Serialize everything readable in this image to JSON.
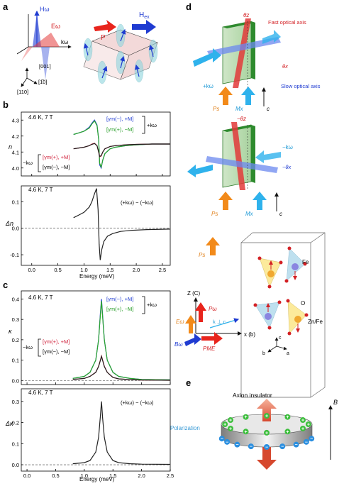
{
  "panels": {
    "a": {
      "label": "a",
      "field_h": "Hω",
      "field_e": "Eω",
      "k": "kω",
      "dir_001": "[001]",
      "dir_1m10": "[1̅0]",
      "dir_110": "[110]",
      "p": "P",
      "hex": "H",
      "hex_sub": "ex"
    },
    "b": {
      "label": "b",
      "top": {
        "condition": "4.6 K, 7 T",
        "ylabel": "n",
        "legend_up1": "[γm(−), +M]",
        "legend_up2": "[γm(+), −M]",
        "legend_up_k": "+kω",
        "legend_dn1": "[γm(+), +M]",
        "legend_dn2": "[γm(−), −M]",
        "legend_dn_k": "−kω"
      },
      "bottom": {
        "condition": "4.6 K, 7 T",
        "ylabel": "Δn",
        "diff": "(+kω) − (−kω)",
        "xlabel": "Energy (meV)"
      }
    },
    "c": {
      "label": "c",
      "top": {
        "condition": "4.6 K, 7 T",
        "ylabel": "κ",
        "legend_up1": "[γm(−), +M]",
        "legend_up2": "[γm(+), −M]",
        "legend_up_k": "+kω",
        "legend_dn1": "[γm(+), +M]",
        "legend_dn2": "[γm(−), −M]",
        "legend_dn_k": "−kω"
      },
      "bottom": {
        "condition": "4.6 K, 7 T",
        "ylabel": "Δκ",
        "diff": "(+kω) − (−kω)",
        "xlabel": "Energy (meV)"
      }
    },
    "d": {
      "label": "d",
      "theta_z": "θz",
      "fast_axis": "Fast optical axis",
      "slow_axis": "Slow optical axis",
      "theta_x": "θx",
      "k_plus": "+kω",
      "ps": "Ps",
      "mx": "Mx",
      "c_axis": "c",
      "theta_z_neg": "−θz",
      "k_minus": "−kω",
      "theta_x_neg": "−θx",
      "ps2": "Ps",
      "mx2": "Mx",
      "c_axis2": "c",
      "ps3": "Ps",
      "fe": "Fe",
      "o": "O",
      "znfe": "Zn/Fe",
      "zc": "Z (C)",
      "p_omega": "Pω",
      "e_omega": "Eω",
      "k_perp_c": "k ⊥ c",
      "b_omega": "Bω",
      "p_me": "PME",
      "x_b": "x (b)",
      "c_small": "c",
      "b_small": "b",
      "a_small": "a"
    },
    "e": {
      "label": "e",
      "axion": "Axion insulator",
      "polarization": "Polarization",
      "b_field": "B"
    }
  },
  "chart_data": [
    {
      "type": "line",
      "title": "",
      "xlabel": "",
      "ylabel": "n",
      "xlim": [
        -0.2,
        2.65
      ],
      "ylim": [
        3.95,
        4.35
      ],
      "xticks": [
        0.0,
        0.5,
        1.0,
        1.5,
        2.0,
        2.5
      ],
      "yticks": [
        4.0,
        4.1,
        4.2,
        4.3
      ],
      "series": [
        {
          "name": "[γm(−), +M]",
          "color": "#2a3fd6",
          "x": [
            0.8,
            0.9,
            1.0,
            1.1,
            1.15,
            1.2,
            1.25,
            1.28,
            1.3,
            1.33,
            1.36,
            1.4,
            1.5,
            1.6,
            1.8,
            2.0,
            2.3,
            2.65
          ],
          "y": [
            4.21,
            4.22,
            4.23,
            4.255,
            4.28,
            4.3,
            4.27,
            4.18,
            4.02,
            4.0,
            4.05,
            4.09,
            4.12,
            4.13,
            4.14,
            4.145,
            4.15,
            4.15
          ]
        },
        {
          "name": "[γm(+), −M]",
          "color": "#2aa82a",
          "x": [
            0.8,
            0.9,
            1.0,
            1.1,
            1.15,
            1.2,
            1.25,
            1.28,
            1.3,
            1.33,
            1.36,
            1.4,
            1.5,
            1.6,
            1.8,
            2.0,
            2.3,
            2.65
          ],
          "y": [
            4.21,
            4.22,
            4.23,
            4.25,
            4.275,
            4.295,
            4.265,
            4.18,
            4.03,
            4.005,
            4.05,
            4.09,
            4.12,
            4.13,
            4.14,
            4.145,
            4.15,
            4.15
          ]
        },
        {
          "name": "[γm(+), +M]",
          "color": "#d0203a",
          "x": [
            0.8,
            0.9,
            1.0,
            1.1,
            1.15,
            1.2,
            1.25,
            1.28,
            1.3,
            1.33,
            1.36,
            1.4,
            1.5,
            1.6,
            1.8,
            2.0,
            2.3,
            2.65
          ],
          "y": [
            4.12,
            4.125,
            4.13,
            4.14,
            4.15,
            4.155,
            4.14,
            4.1,
            4.07,
            4.075,
            4.1,
            4.12,
            4.135,
            4.14,
            4.145,
            4.148,
            4.15,
            4.15
          ]
        },
        {
          "name": "[γm(−), −M]",
          "color": "#222222",
          "x": [
            0.8,
            0.9,
            1.0,
            1.1,
            1.15,
            1.2,
            1.25,
            1.28,
            1.3,
            1.33,
            1.36,
            1.4,
            1.5,
            1.6,
            1.8,
            2.0,
            2.3,
            2.65
          ],
          "y": [
            4.12,
            4.125,
            4.13,
            4.14,
            4.148,
            4.153,
            4.14,
            4.1,
            4.072,
            4.078,
            4.1,
            4.12,
            4.135,
            4.14,
            4.145,
            4.148,
            4.15,
            4.15
          ]
        }
      ]
    },
    {
      "type": "line",
      "title": "",
      "xlabel": "Energy (meV)",
      "ylabel": "Δn",
      "xlim": [
        -0.2,
        2.65
      ],
      "ylim": [
        -0.14,
        0.16
      ],
      "xticks": [
        0.0,
        0.5,
        1.0,
        1.5,
        2.0,
        2.5
      ],
      "yticks": [
        -0.1,
        0.0,
        0.1
      ],
      "series": [
        {
          "name": "",
          "color": "#222222",
          "x": [
            0.8,
            0.9,
            1.0,
            1.1,
            1.15,
            1.2,
            1.24,
            1.27,
            1.29,
            1.31,
            1.34,
            1.38,
            1.45,
            1.55,
            1.7,
            1.9,
            2.2,
            2.65
          ],
          "y": [
            0.04,
            0.05,
            0.06,
            0.08,
            0.1,
            0.13,
            0.15,
            0.07,
            -0.06,
            -0.12,
            -0.08,
            -0.05,
            -0.03,
            -0.02,
            -0.012,
            -0.008,
            -0.005,
            -0.003
          ]
        }
      ]
    },
    {
      "type": "line",
      "title": "",
      "xlabel": "",
      "ylabel": "κ",
      "xlim": [
        -0.1,
        2.5
      ],
      "ylim": [
        -0.02,
        0.44
      ],
      "xticks": [
        0.0,
        0.5,
        1.0,
        1.5,
        2.0,
        2.5
      ],
      "yticks": [
        0.0,
        0.1,
        0.2,
        0.3,
        0.4
      ],
      "series": [
        {
          "name": "[γm(−), +M]",
          "color": "#2a3fd6",
          "x": [
            0.8,
            1.0,
            1.1,
            1.2,
            1.25,
            1.28,
            1.3,
            1.32,
            1.35,
            1.4,
            1.5,
            1.6,
            1.8,
            2.0,
            2.5
          ],
          "y": [
            0.01,
            0.02,
            0.04,
            0.1,
            0.2,
            0.33,
            0.4,
            0.32,
            0.2,
            0.1,
            0.04,
            0.02,
            0.01,
            0.005,
            0.003
          ]
        },
        {
          "name": "[γm(+), −M]",
          "color": "#2aa82a",
          "x": [
            0.8,
            1.0,
            1.1,
            1.2,
            1.25,
            1.28,
            1.3,
            1.32,
            1.35,
            1.4,
            1.5,
            1.6,
            1.8,
            2.0,
            2.5
          ],
          "y": [
            0.01,
            0.02,
            0.04,
            0.1,
            0.2,
            0.32,
            0.39,
            0.31,
            0.2,
            0.1,
            0.04,
            0.02,
            0.01,
            0.005,
            0.003
          ]
        },
        {
          "name": "[γm(+), +M]",
          "color": "#d0203a",
          "x": [
            0.8,
            1.0,
            1.1,
            1.2,
            1.25,
            1.28,
            1.3,
            1.32,
            1.35,
            1.4,
            1.5,
            1.6,
            1.8,
            2.0,
            2.5
          ],
          "y": [
            0.005,
            0.01,
            0.02,
            0.04,
            0.07,
            0.1,
            0.12,
            0.1,
            0.07,
            0.04,
            0.015,
            0.008,
            0.004,
            0.002,
            0.001
          ]
        },
        {
          "name": "[γm(−), −M]",
          "color": "#222222",
          "x": [
            0.8,
            1.0,
            1.1,
            1.2,
            1.25,
            1.28,
            1.3,
            1.32,
            1.35,
            1.4,
            1.5,
            1.6,
            1.8,
            2.0,
            2.5
          ],
          "y": [
            0.005,
            0.01,
            0.02,
            0.04,
            0.068,
            0.098,
            0.118,
            0.098,
            0.068,
            0.04,
            0.015,
            0.008,
            0.004,
            0.002,
            0.001
          ]
        }
      ]
    },
    {
      "type": "line",
      "title": "",
      "xlabel": "Energy (meV)",
      "ylabel": "Δκ",
      "xlim": [
        -0.1,
        2.5
      ],
      "ylim": [
        -0.03,
        0.36
      ],
      "xticks": [
        0.0,
        0.5,
        1.0,
        1.5,
        2.0,
        2.5
      ],
      "yticks": [
        0.0,
        0.1,
        0.2,
        0.3
      ],
      "series": [
        {
          "name": "",
          "color": "#222222",
          "x": [
            0.8,
            1.0,
            1.1,
            1.2,
            1.25,
            1.28,
            1.3,
            1.32,
            1.35,
            1.4,
            1.5,
            1.6,
            1.8,
            2.0,
            2.5
          ],
          "y": [
            0.005,
            0.01,
            0.02,
            0.06,
            0.13,
            0.23,
            0.3,
            0.22,
            0.13,
            0.06,
            0.02,
            0.01,
            0.005,
            0.003,
            0.002
          ]
        }
      ]
    }
  ]
}
